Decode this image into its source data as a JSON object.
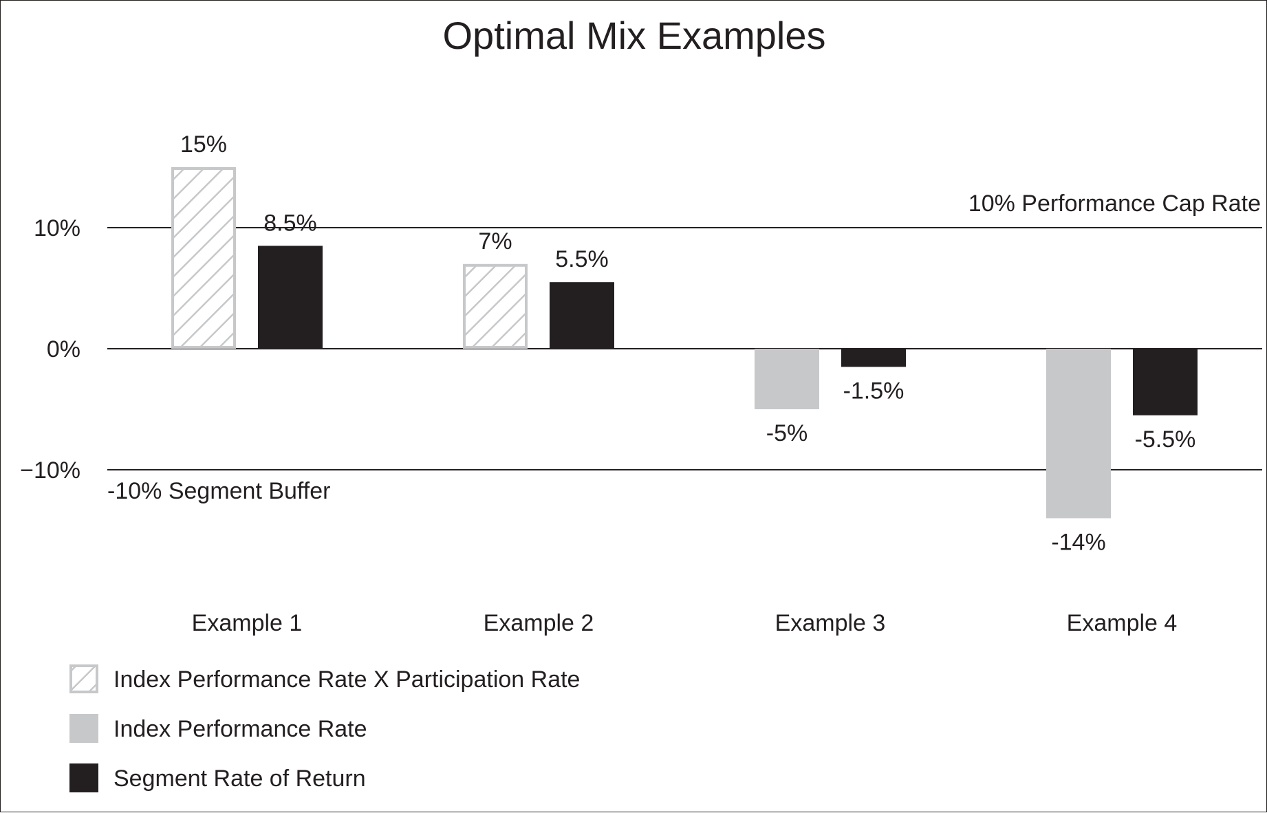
{
  "chart_data": {
    "type": "bar",
    "title": "Optimal Mix Examples",
    "categories": [
      "Example 1",
      "Example 2",
      "Example 3",
      "Example 4"
    ],
    "series": [
      {
        "name": "Index Performance Rate X Participation Rate",
        "style": "hatched",
        "values": [
          15,
          7,
          null,
          null
        ],
        "labels": [
          "15%",
          "7%",
          "",
          ""
        ]
      },
      {
        "name": "Index Performance Rate",
        "style": "gray",
        "values": [
          null,
          null,
          -5,
          -14
        ],
        "labels": [
          "",
          "",
          "-5%",
          "-14%"
        ]
      },
      {
        "name": "Segment Rate of Return",
        "style": "black",
        "values": [
          8.5,
          5.5,
          -1.5,
          -5.5
        ],
        "labels": [
          "8.5%",
          "5.5%",
          "-1.5%",
          "-5.5%"
        ]
      }
    ],
    "ylim": [
      -14,
      15
    ],
    "yticks": [
      {
        "value": 10,
        "label": "10%"
      },
      {
        "value": 0,
        "label": "0%"
      },
      {
        "value": -10,
        "label": "−10%"
      }
    ],
    "reference_lines": [
      {
        "value": 10,
        "label": "10% Performance Cap Rate",
        "label_position": "above-right"
      },
      {
        "value": -10,
        "label": "-10% Segment Buffer",
        "label_position": "below-left"
      }
    ],
    "legend_position": "bottom-left",
    "grid": false,
    "xlabel": "",
    "ylabel": ""
  },
  "colors": {
    "black": "#231f20",
    "gray": "#c7c8ca",
    "hatch": "#c7c8ca",
    "axis": "#231f20"
  }
}
